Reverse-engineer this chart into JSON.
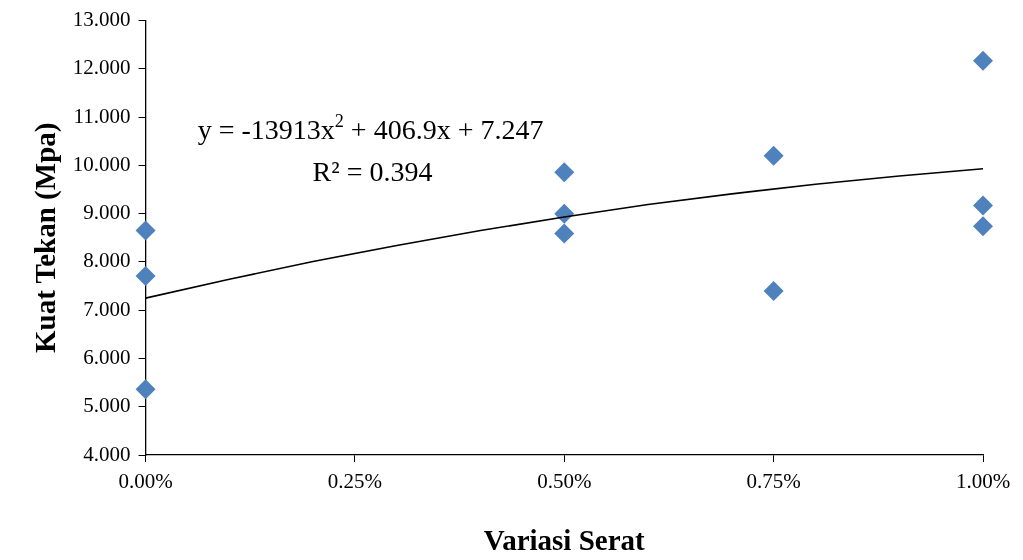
{
  "chart_data": {
    "type": "scatter",
    "xlabel": "Variasi Serat",
    "ylabel": "Kuat Tekan (Mpa)",
    "xlim": [
      0,
      1
    ],
    "xticks": [
      {
        "value": 0,
        "label": "0.00%"
      },
      {
        "value": 0.25,
        "label": "0.25%"
      },
      {
        "value": 0.5,
        "label": "0.50%"
      },
      {
        "value": 0.75,
        "label": "0.75%"
      },
      {
        "value": 1,
        "label": "1.00%"
      }
    ],
    "ylim": [
      4,
      13
    ],
    "yticks": [
      {
        "value": 4,
        "label": "4.000"
      },
      {
        "value": 5,
        "label": "5.000"
      },
      {
        "value": 6,
        "label": "6.000"
      },
      {
        "value": 7,
        "label": "7.000"
      },
      {
        "value": 8,
        "label": "8.000"
      },
      {
        "value": 9,
        "label": "9.000"
      },
      {
        "value": 10,
        "label": "10.000"
      },
      {
        "value": 11,
        "label": "11.000"
      },
      {
        "value": 12,
        "label": "12.000"
      },
      {
        "value": 13,
        "label": "13.000"
      }
    ],
    "grid": false,
    "legend": false,
    "marker": "diamond",
    "annotations": [
      "y = -13913x$^{2}$ + 406.9x + 7.247",
      "R² = 0.394"
    ],
    "series": [
      {
        "color": "#4f81bd",
        "x": [
          0,
          0,
          0,
          0.5,
          0.5,
          0.5,
          0.75,
          0.75,
          1,
          1,
          1
        ],
        "values": [
          8.65,
          7.71,
          5.36,
          9.86,
          9.0,
          8.59,
          10.2,
          7.4,
          12.17,
          9.17,
          8.74
        ]
      },
      {
        "type": "line",
        "color": "#000000",
        "marker": "none",
        "x": [
          0,
          0.1,
          0.2,
          0.3,
          0.4,
          0.5,
          0.6,
          0.7,
          0.8,
          0.9,
          1
        ],
        "values": [
          7.25,
          7.64,
          8.01,
          8.34,
          8.65,
          8.93,
          9.19,
          9.41,
          9.61,
          9.78,
          9.93
        ]
      }
    ]
  }
}
